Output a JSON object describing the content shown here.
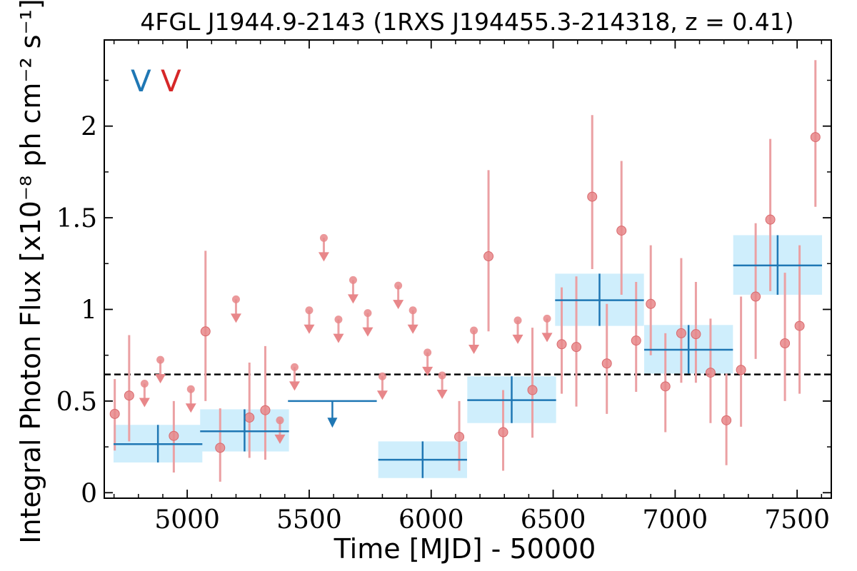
{
  "chart_data": {
    "type": "scatter",
    "title": "4FGL J1944.9-2143 (1RXS J194455.3-214318, z = 0.41)",
    "xlabel": "Time [MJD] - 50000",
    "ylabel": "Integral Photon Flux [x10⁻⁸ ph cm⁻² s⁻¹]",
    "xlim": [
      4660,
      7640
    ],
    "ylim": [
      -0.03,
      2.47
    ],
    "x_ticks": [
      5000,
      5500,
      6000,
      6500,
      7000,
      7500
    ],
    "x_tick_labels": [
      "5000",
      "5500",
      "6000",
      "6500",
      "7000",
      "7500"
    ],
    "y_ticks": [
      0,
      0.5,
      1,
      1.5,
      2
    ],
    "y_tick_labels": [
      "0",
      "0.5",
      "1",
      "1.5",
      "2"
    ],
    "reference_line": {
      "y": 0.645,
      "style": "dashed",
      "color": "#000000"
    },
    "legend": {
      "placement": "top-left",
      "entries": [
        "V",
        "V"
      ],
      "colors": [
        "#1f77b4",
        "#d62728"
      ]
    },
    "colors": {
      "yearly": "#1f77b4",
      "yearly_band": "#cfeefc",
      "monthly": "#e8878a",
      "monthly_err": "#eba0a3"
    },
    "series": [
      {
        "color": "#1f77b4",
        "points": [
          {
            "x": 4880,
            "xerr": 182,
            "y": 0.265,
            "ylo": 0.165,
            "yhi": 0.37
          },
          {
            "x": 5235,
            "xerr": 182,
            "y": 0.335,
            "ylo": 0.225,
            "yhi": 0.455
          },
          {
            "x": 5965,
            "xerr": 182,
            "y": 0.18,
            "ylo": 0.08,
            "yhi": 0.28
          },
          {
            "x": 6330,
            "xerr": 182,
            "y": 0.505,
            "ylo": 0.38,
            "yhi": 0.635
          },
          {
            "x": 6690,
            "xerr": 182,
            "y": 1.05,
            "ylo": 0.91,
            "yhi": 1.195
          },
          {
            "x": 7055,
            "xerr": 182,
            "y": 0.78,
            "ylo": 0.65,
            "yhi": 0.915
          },
          {
            "x": 7420,
            "xerr": 182,
            "y": 1.24,
            "ylo": 1.08,
            "yhi": 1.405
          }
        ],
        "upper_limits": [
          {
            "x": 5595,
            "xerr": 182,
            "y": 0.5,
            "arrow_to": 0.37
          }
        ]
      },
      {
        "color": "#d62728",
        "points": [
          {
            "x": 4703,
            "y": 0.43,
            "ylo": 0.23,
            "yhi": 0.62
          },
          {
            "x": 4762,
            "y": 0.53,
            "ylo": 0.28,
            "yhi": 0.86
          },
          {
            "x": 4945,
            "y": 0.31,
            "ylo": 0.11,
            "yhi": 0.5
          },
          {
            "x": 5075,
            "y": 0.88,
            "ylo": 0.5,
            "yhi": 1.32
          },
          {
            "x": 5135,
            "y": 0.245,
            "ylo": 0.06,
            "yhi": 0.46
          },
          {
            "x": 5255,
            "y": 0.41,
            "ylo": 0.19,
            "yhi": 0.71
          },
          {
            "x": 5320,
            "y": 0.45,
            "ylo": 0.18,
            "yhi": 0.8
          },
          {
            "x": 6115,
            "y": 0.305,
            "ylo": 0.12,
            "yhi": 0.5
          },
          {
            "x": 6235,
            "y": 1.29,
            "ylo": 0.88,
            "yhi": 1.76
          },
          {
            "x": 6295,
            "y": 0.33,
            "ylo": 0.12,
            "yhi": 0.56
          },
          {
            "x": 6415,
            "y": 0.56,
            "ylo": 0.3,
            "yhi": 0.9
          },
          {
            "x": 6535,
            "y": 0.81,
            "ylo": 0.54,
            "yhi": 1.12
          },
          {
            "x": 6595,
            "y": 0.795,
            "ylo": 0.47,
            "yhi": 1.18
          },
          {
            "x": 6660,
            "y": 1.615,
            "ylo": 1.22,
            "yhi": 2.06
          },
          {
            "x": 6720,
            "y": 0.705,
            "ylo": 0.43,
            "yhi": 1.03
          },
          {
            "x": 6780,
            "y": 1.43,
            "ylo": 1.08,
            "yhi": 1.81
          },
          {
            "x": 6840,
            "y": 0.83,
            "ylo": 0.55,
            "yhi": 1.15
          },
          {
            "x": 6900,
            "y": 1.03,
            "ylo": 0.75,
            "yhi": 1.35
          },
          {
            "x": 6960,
            "y": 0.58,
            "ylo": 0.33,
            "yhi": 0.87
          },
          {
            "x": 7025,
            "y": 0.87,
            "ylo": 0.6,
            "yhi": 1.28
          },
          {
            "x": 7085,
            "y": 0.865,
            "ylo": 0.6,
            "yhi": 1.15
          },
          {
            "x": 7145,
            "y": 0.655,
            "ylo": 0.38,
            "yhi": 0.95
          },
          {
            "x": 7210,
            "y": 0.395,
            "ylo": 0.15,
            "yhi": 0.65
          },
          {
            "x": 7270,
            "y": 0.67,
            "ylo": 0.36,
            "yhi": 1.07
          },
          {
            "x": 7330,
            "y": 1.07,
            "ylo": 0.73,
            "yhi": 1.47
          },
          {
            "x": 7390,
            "y": 1.49,
            "ylo": 1.1,
            "yhi": 1.93
          },
          {
            "x": 7450,
            "y": 0.815,
            "ylo": 0.5,
            "yhi": 1.2
          },
          {
            "x": 7510,
            "y": 0.91,
            "ylo": 0.54,
            "yhi": 1.35
          },
          {
            "x": 7575,
            "y": 1.94,
            "ylo": 1.56,
            "yhi": 2.36
          }
        ],
        "upper_limits": [
          {
            "x": 4825,
            "y": 0.595
          },
          {
            "x": 4890,
            "y": 0.725
          },
          {
            "x": 5015,
            "y": 0.565
          },
          {
            "x": 5200,
            "y": 1.055
          },
          {
            "x": 5380,
            "y": 0.395
          },
          {
            "x": 5440,
            "y": 0.685
          },
          {
            "x": 5500,
            "y": 0.995
          },
          {
            "x": 5560,
            "y": 1.39
          },
          {
            "x": 5620,
            "y": 0.945
          },
          {
            "x": 5680,
            "y": 1.16
          },
          {
            "x": 5740,
            "y": 0.98
          },
          {
            "x": 5800,
            "y": 0.635
          },
          {
            "x": 5865,
            "y": 1.13
          },
          {
            "x": 5925,
            "y": 0.995
          },
          {
            "x": 5985,
            "y": 0.765
          },
          {
            "x": 6045,
            "y": 0.64
          },
          {
            "x": 6175,
            "y": 0.885
          },
          {
            "x": 6355,
            "y": 0.94
          },
          {
            "x": 6475,
            "y": 0.95
          }
        ]
      }
    ]
  }
}
